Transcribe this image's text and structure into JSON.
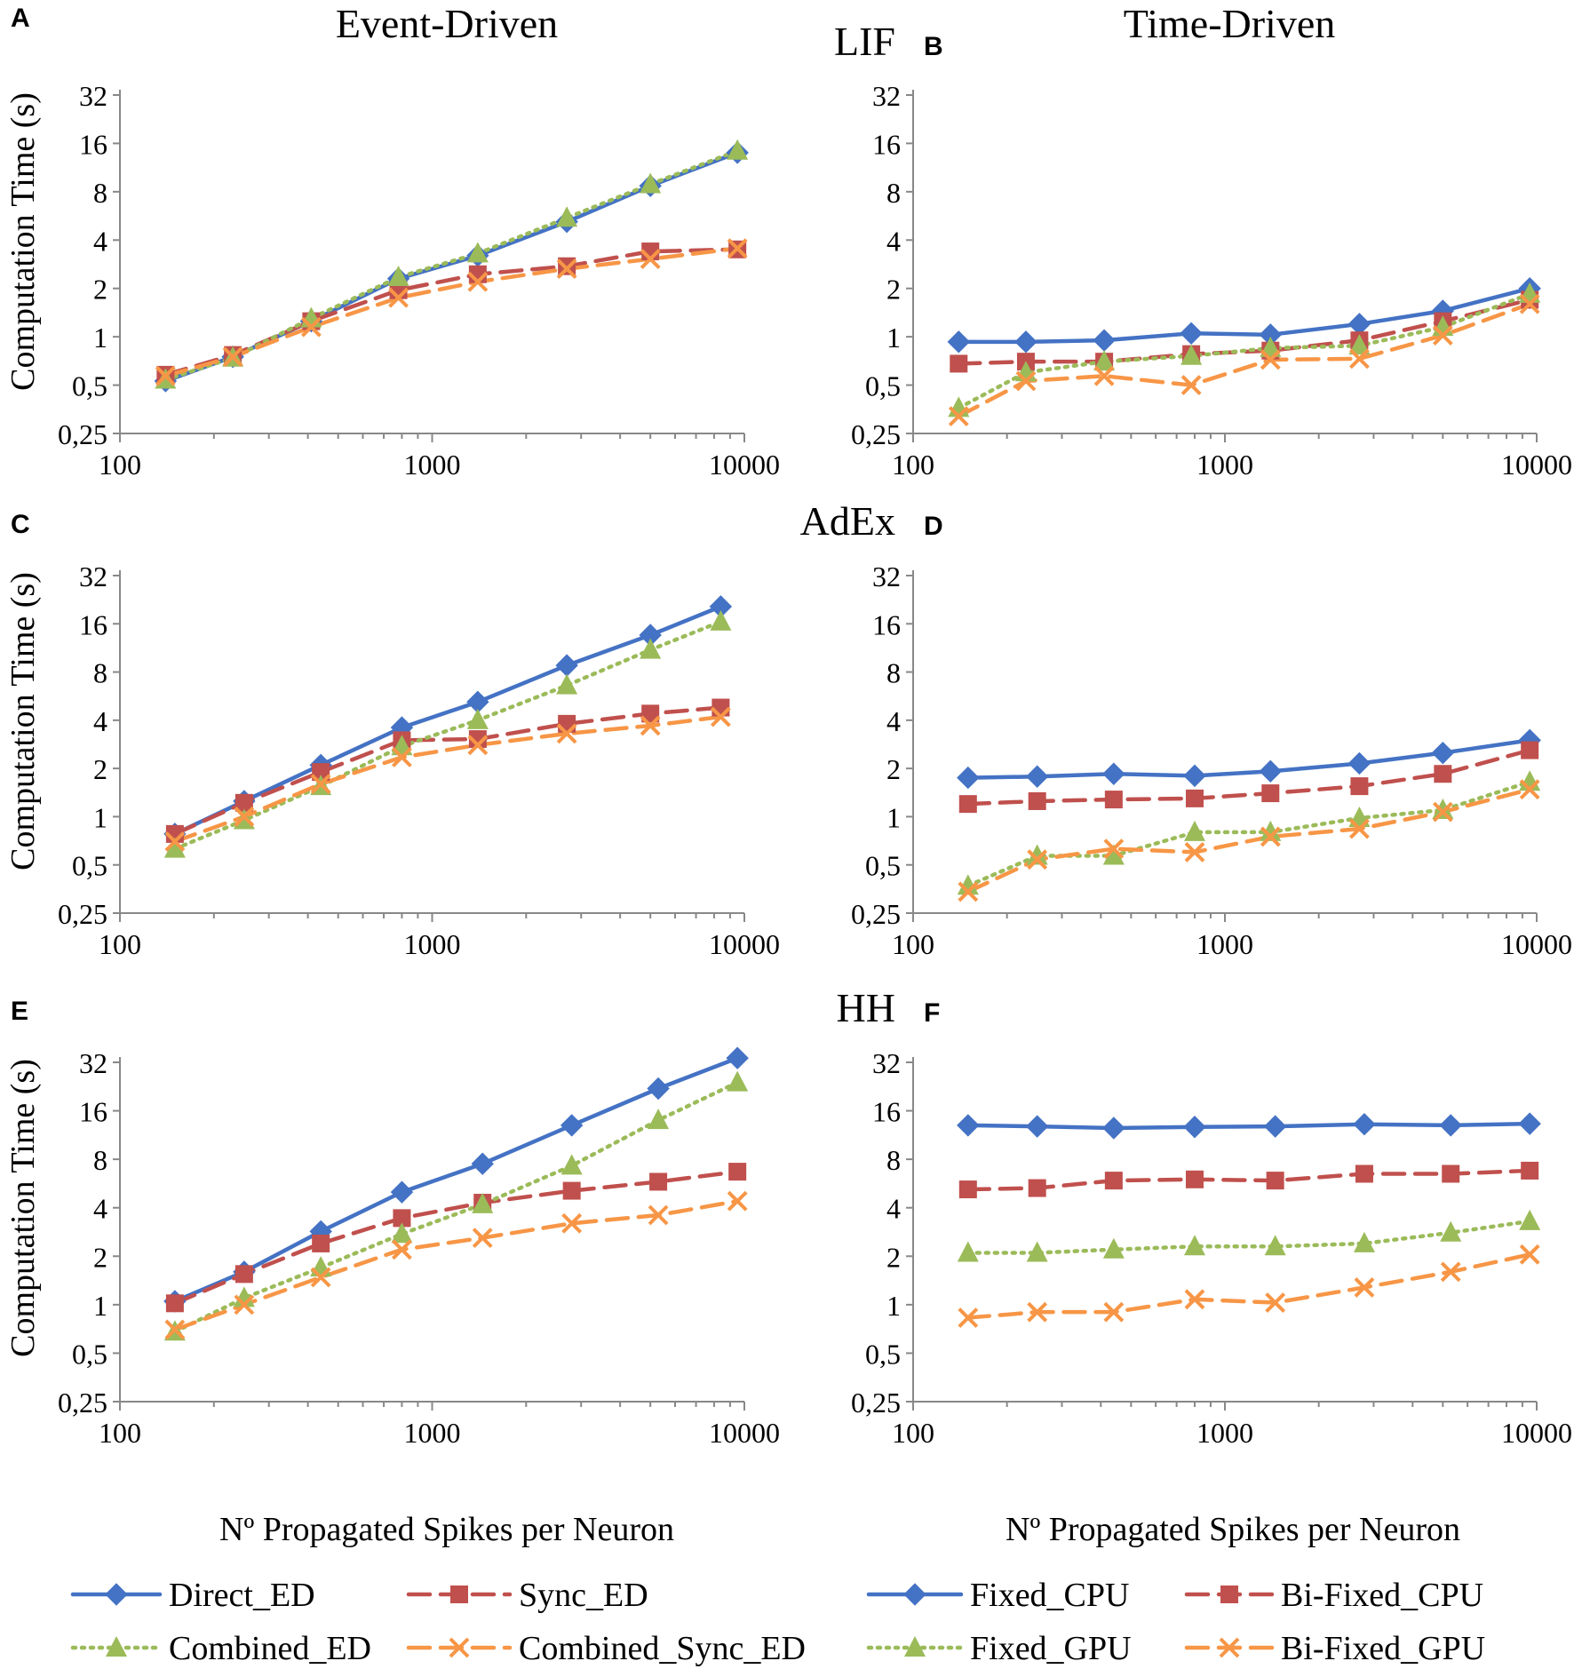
{
  "figure": {
    "column_titles": [
      "Event-Driven",
      "Time-Driven"
    ],
    "row_titles": [
      "LIF",
      "AdEx",
      "HH"
    ],
    "ylabel": "Computation Time (s)",
    "xlabel": "Nº Propagated Spikes per Neuron"
  },
  "legend_left": [
    {
      "name": "Direct_ED",
      "style": "solid",
      "marker": "diamond",
      "color": "#4472C4"
    },
    {
      "name": "Sync_ED",
      "style": "dashed",
      "marker": "square",
      "color": "#C0504D"
    },
    {
      "name": "Combined_ED",
      "style": "dotted",
      "marker": "triangle",
      "color": "#9BBB59"
    },
    {
      "name": "Combined_Sync_ED",
      "style": "dashed",
      "marker": "x",
      "color": "#F79646"
    }
  ],
  "legend_right": [
    {
      "name": "Fixed_CPU",
      "style": "solid",
      "marker": "diamond",
      "color": "#4472C4"
    },
    {
      "name": "Bi-Fixed_CPU",
      "style": "dashed",
      "marker": "square",
      "color": "#C0504D"
    },
    {
      "name": "Fixed_GPU",
      "style": "dotted",
      "marker": "triangle",
      "color": "#9BBB59"
    },
    {
      "name": "Bi-Fixed_GPU",
      "style": "dashed",
      "marker": "x",
      "color": "#F79646"
    }
  ],
  "chart_data": [
    {
      "panel": "A",
      "type": "line",
      "scale": "log-log",
      "xlim": [
        100,
        10000
      ],
      "ylim": [
        0.25,
        32
      ],
      "xticks": [
        "100",
        "1000",
        "10000"
      ],
      "yticks": [
        "0,25",
        "0,5",
        "1",
        "2",
        "4",
        "8",
        "16",
        "32"
      ],
      "x": [
        140,
        230,
        410,
        780,
        1400,
        2700,
        5000,
        9500
      ],
      "series": [
        {
          "name": "Direct_ED",
          "values": [
            0.53,
            0.75,
            1.25,
            2.3,
            3.2,
            5.2,
            8.7,
            14.0
          ]
        },
        {
          "name": "Sync_ED",
          "values": [
            0.58,
            0.77,
            1.25,
            1.95,
            2.45,
            2.75,
            3.4,
            3.5
          ]
        },
        {
          "name": "Combined_ED",
          "values": [
            0.54,
            0.74,
            1.3,
            2.35,
            3.3,
            5.5,
            8.9,
            14.4
          ]
        },
        {
          "name": "Combined_Sync_ED",
          "values": [
            0.57,
            0.75,
            1.15,
            1.75,
            2.2,
            2.65,
            3.05,
            3.55
          ]
        }
      ]
    },
    {
      "panel": "B",
      "type": "line",
      "scale": "log-log",
      "xlim": [
        100,
        10000
      ],
      "ylim": [
        0.25,
        32
      ],
      "xticks": [
        "100",
        "1000",
        "10000"
      ],
      "yticks": [
        "0,25",
        "0,5",
        "1",
        "2",
        "4",
        "8",
        "16",
        "32"
      ],
      "x": [
        140,
        230,
        410,
        780,
        1400,
        2700,
        5000,
        9500
      ],
      "series": [
        {
          "name": "Fixed_CPU",
          "values": [
            0.93,
            0.93,
            0.95,
            1.05,
            1.03,
            1.2,
            1.45,
            2.0
          ]
        },
        {
          "name": "Bi-Fixed_CPU",
          "values": [
            0.68,
            0.7,
            0.7,
            0.78,
            0.82,
            0.95,
            1.25,
            1.7
          ]
        },
        {
          "name": "Fixed_GPU",
          "values": [
            0.36,
            0.6,
            0.7,
            0.76,
            0.85,
            0.88,
            1.15,
            1.85
          ]
        },
        {
          "name": "Bi-Fixed_GPU",
          "values": [
            0.32,
            0.53,
            0.57,
            0.5,
            0.72,
            0.73,
            1.02,
            1.6
          ]
        }
      ]
    },
    {
      "panel": "C",
      "type": "line",
      "scale": "log-log",
      "xlim": [
        100,
        10000
      ],
      "ylim": [
        0.25,
        32
      ],
      "xticks": [
        "100",
        "1000",
        "10000"
      ],
      "yticks": [
        "0,25",
        "0,5",
        "1",
        "2",
        "4",
        "8",
        "16",
        "32"
      ],
      "x": [
        150,
        250,
        440,
        800,
        1400,
        2700,
        5000,
        8400
      ],
      "series": [
        {
          "name": "Direct_ED",
          "values": [
            0.78,
            1.25,
            2.1,
            3.6,
            5.2,
            8.8,
            13.6,
            20.5
          ]
        },
        {
          "name": "Sync_ED",
          "values": [
            0.78,
            1.22,
            1.9,
            3.0,
            3.05,
            3.8,
            4.4,
            4.8
          ]
        },
        {
          "name": "Combined_ED",
          "values": [
            0.63,
            0.95,
            1.55,
            2.75,
            4.0,
            6.6,
            11.0,
            16.5
          ]
        },
        {
          "name": "Combined_Sync_ED",
          "values": [
            0.7,
            1.0,
            1.6,
            2.35,
            2.8,
            3.3,
            3.7,
            4.2
          ]
        }
      ]
    },
    {
      "panel": "D",
      "type": "line",
      "scale": "log-log",
      "xlim": [
        100,
        10000
      ],
      "ylim": [
        0.25,
        32
      ],
      "xticks": [
        "100",
        "1000",
        "10000"
      ],
      "yticks": [
        "0,25",
        "0,5",
        "1",
        "2",
        "4",
        "8",
        "16",
        "32"
      ],
      "x": [
        150,
        250,
        440,
        800,
        1400,
        2700,
        5000,
        9500
      ],
      "series": [
        {
          "name": "Fixed_CPU",
          "values": [
            1.75,
            1.78,
            1.85,
            1.8,
            1.92,
            2.15,
            2.5,
            3.0
          ]
        },
        {
          "name": "Bi-Fixed_CPU",
          "values": [
            1.2,
            1.25,
            1.28,
            1.3,
            1.4,
            1.55,
            1.85,
            2.6
          ]
        },
        {
          "name": "Fixed_GPU",
          "values": [
            0.37,
            0.57,
            0.57,
            0.8,
            0.8,
            0.98,
            1.1,
            1.65
          ]
        },
        {
          "name": "Bi-Fixed_GPU",
          "values": [
            0.34,
            0.54,
            0.63,
            0.6,
            0.75,
            0.84,
            1.07,
            1.48
          ]
        }
      ]
    },
    {
      "panel": "E",
      "type": "line",
      "scale": "log-log",
      "xlim": [
        100,
        10000
      ],
      "ylim": [
        0.25,
        32
      ],
      "xticks": [
        "100",
        "1000",
        "10000"
      ],
      "yticks": [
        "0,25",
        "0,5",
        "1",
        "2",
        "4",
        "8",
        "16",
        "32"
      ],
      "x": [
        150,
        250,
        440,
        800,
        1450,
        2800,
        5300,
        9500
      ],
      "series": [
        {
          "name": "Direct_ED",
          "values": [
            1.05,
            1.6,
            2.85,
            5.0,
            7.5,
            13.0,
            22.0,
            34.0
          ]
        },
        {
          "name": "Sync_ED",
          "values": [
            1.02,
            1.55,
            2.4,
            3.45,
            4.3,
            5.1,
            5.8,
            6.7
          ]
        },
        {
          "name": "Combined_ED",
          "values": [
            0.68,
            1.1,
            1.7,
            2.75,
            4.2,
            7.3,
            14.0,
            24.0
          ]
        },
        {
          "name": "Combined_Sync_ED",
          "values": [
            0.7,
            1.0,
            1.48,
            2.2,
            2.6,
            3.2,
            3.6,
            4.4
          ]
        }
      ]
    },
    {
      "panel": "F",
      "type": "line",
      "scale": "log-log",
      "xlim": [
        100,
        10000
      ],
      "ylim": [
        0.25,
        32
      ],
      "xticks": [
        "100",
        "1000",
        "10000"
      ],
      "yticks": [
        "0,25",
        "0,5",
        "1",
        "2",
        "4",
        "8",
        "16",
        "32"
      ],
      "x": [
        150,
        250,
        440,
        800,
        1450,
        2800,
        5300,
        9500
      ],
      "series": [
        {
          "name": "Fixed_CPU",
          "values": [
            13.0,
            12.8,
            12.5,
            12.7,
            12.8,
            13.2,
            13.0,
            13.3
          ]
        },
        {
          "name": "Bi-Fixed_CPU",
          "values": [
            5.2,
            5.3,
            5.9,
            6.0,
            5.9,
            6.5,
            6.5,
            6.8
          ]
        },
        {
          "name": "Fixed_GPU",
          "values": [
            2.1,
            2.1,
            2.2,
            2.3,
            2.3,
            2.4,
            2.8,
            3.3
          ]
        },
        {
          "name": "Bi-Fixed_GPU",
          "values": [
            0.83,
            0.9,
            0.9,
            1.08,
            1.03,
            1.28,
            1.6,
            2.05
          ]
        }
      ]
    }
  ]
}
